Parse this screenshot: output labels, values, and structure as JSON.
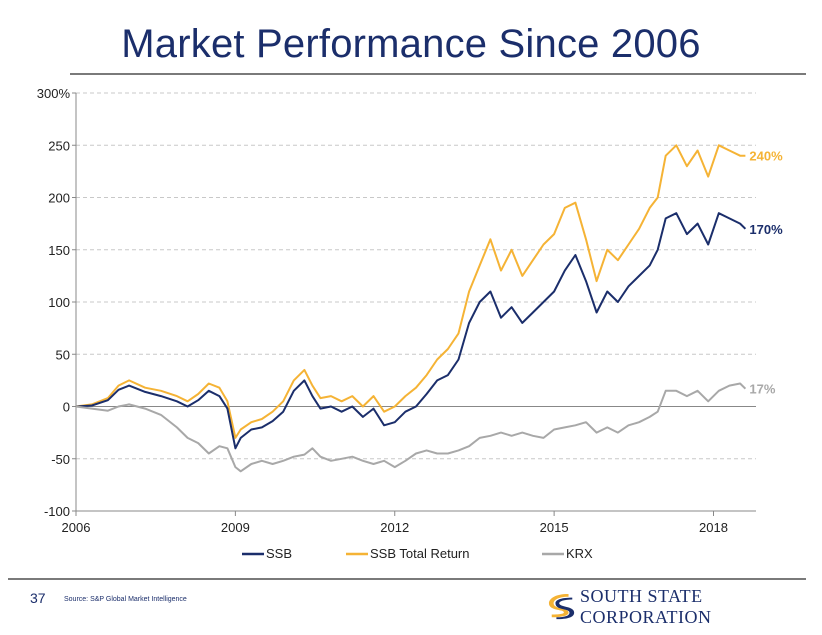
{
  "title": "Market Performance Since 2006",
  "page_number": "37",
  "source": "Source: S&P Global Market Intelligence",
  "logo_text": "SOUTH STATE CORPORATION",
  "colors": {
    "ssb": "#1b2e6b",
    "ssb_total_return": "#f5b335",
    "krx": "#a8a8a8",
    "brand": "#1b2e6b",
    "logo_accent": "#f5b335"
  },
  "chart_data": {
    "type": "line",
    "title": "",
    "xlabel": "",
    "ylabel": "",
    "ylim": [
      -100,
      300
    ],
    "xlim": [
      2006,
      2018.8
    ],
    "y_ticks": [
      -100,
      -50,
      0,
      50,
      100,
      150,
      200,
      250,
      300
    ],
    "y_tick_labels": [
      "-100",
      "-50",
      "0",
      "50",
      "100",
      "150",
      "200",
      "250",
      "300%"
    ],
    "x_ticks": [
      2006,
      2009,
      2012,
      2015,
      2018
    ],
    "x_tick_labels": [
      "2006",
      "2009",
      "2012",
      "2015",
      "2018"
    ],
    "grid": true,
    "legend": "bottom",
    "series": [
      {
        "name": "SSB Total Return",
        "color": "#f5b335",
        "end_label": "240%",
        "x": [
          2006.0,
          2006.3,
          2006.6,
          2006.8,
          2007.0,
          2007.3,
          2007.6,
          2007.9,
          2008.1,
          2008.3,
          2008.5,
          2008.7,
          2008.85,
          2009.0,
          2009.1,
          2009.3,
          2009.5,
          2009.7,
          2009.9,
          2010.1,
          2010.3,
          2010.45,
          2010.6,
          2010.8,
          2011.0,
          2011.2,
          2011.4,
          2011.6,
          2011.8,
          2012.0,
          2012.2,
          2012.4,
          2012.6,
          2012.8,
          2013.0,
          2013.2,
          2013.4,
          2013.6,
          2013.8,
          2014.0,
          2014.2,
          2014.4,
          2014.6,
          2014.8,
          2015.0,
          2015.2,
          2015.4,
          2015.6,
          2015.8,
          2016.0,
          2016.2,
          2016.4,
          2016.6,
          2016.8,
          2016.95,
          2017.1,
          2017.3,
          2017.5,
          2017.7,
          2017.9,
          2018.1,
          2018.3,
          2018.5,
          2018.6
        ],
        "values": [
          0,
          2,
          8,
          20,
          25,
          18,
          15,
          10,
          5,
          12,
          22,
          18,
          5,
          -30,
          -22,
          -15,
          -12,
          -5,
          5,
          25,
          35,
          20,
          8,
          10,
          5,
          10,
          0,
          10,
          -5,
          0,
          10,
          18,
          30,
          45,
          55,
          70,
          110,
          135,
          160,
          130,
          150,
          125,
          140,
          155,
          165,
          190,
          195,
          160,
          120,
          150,
          140,
          155,
          170,
          190,
          200,
          240,
          250,
          230,
          245,
          220,
          250,
          245,
          240,
          240
        ]
      },
      {
        "name": "SSB",
        "color": "#1b2e6b",
        "end_label": "170%",
        "x": [
          2006.0,
          2006.3,
          2006.6,
          2006.8,
          2007.0,
          2007.3,
          2007.6,
          2007.9,
          2008.1,
          2008.3,
          2008.5,
          2008.7,
          2008.85,
          2009.0,
          2009.1,
          2009.3,
          2009.5,
          2009.7,
          2009.9,
          2010.1,
          2010.3,
          2010.45,
          2010.6,
          2010.8,
          2011.0,
          2011.2,
          2011.4,
          2011.6,
          2011.8,
          2012.0,
          2012.2,
          2012.4,
          2012.6,
          2012.8,
          2013.0,
          2013.2,
          2013.4,
          2013.6,
          2013.8,
          2014.0,
          2014.2,
          2014.4,
          2014.6,
          2014.8,
          2015.0,
          2015.2,
          2015.4,
          2015.6,
          2015.8,
          2016.0,
          2016.2,
          2016.4,
          2016.6,
          2016.8,
          2016.95,
          2017.1,
          2017.3,
          2017.5,
          2017.7,
          2017.9,
          2018.1,
          2018.3,
          2018.5,
          2018.6
        ],
        "values": [
          0,
          1,
          6,
          16,
          20,
          14,
          10,
          5,
          0,
          6,
          15,
          10,
          -2,
          -40,
          -30,
          -22,
          -20,
          -14,
          -5,
          15,
          25,
          10,
          -2,
          0,
          -5,
          0,
          -10,
          -2,
          -18,
          -15,
          -5,
          0,
          12,
          25,
          30,
          45,
          80,
          100,
          110,
          85,
          95,
          80,
          90,
          100,
          110,
          130,
          145,
          120,
          90,
          110,
          100,
          115,
          125,
          135,
          150,
          180,
          185,
          165,
          175,
          155,
          185,
          180,
          175,
          170
        ]
      },
      {
        "name": "KRX",
        "color": "#a8a8a8",
        "end_label": "17%",
        "x": [
          2006.0,
          2006.3,
          2006.6,
          2006.8,
          2007.0,
          2007.3,
          2007.6,
          2007.9,
          2008.1,
          2008.3,
          2008.5,
          2008.7,
          2008.85,
          2009.0,
          2009.1,
          2009.3,
          2009.5,
          2009.7,
          2009.9,
          2010.1,
          2010.3,
          2010.45,
          2010.6,
          2010.8,
          2011.0,
          2011.2,
          2011.4,
          2011.6,
          2011.8,
          2012.0,
          2012.2,
          2012.4,
          2012.6,
          2012.8,
          2013.0,
          2013.2,
          2013.4,
          2013.6,
          2013.8,
          2014.0,
          2014.2,
          2014.4,
          2014.6,
          2014.8,
          2015.0,
          2015.2,
          2015.4,
          2015.6,
          2015.8,
          2016.0,
          2016.2,
          2016.4,
          2016.6,
          2016.8,
          2016.95,
          2017.1,
          2017.3,
          2017.5,
          2017.7,
          2017.9,
          2018.1,
          2018.3,
          2018.5,
          2018.6
        ],
        "values": [
          0,
          -2,
          -4,
          0,
          2,
          -2,
          -8,
          -20,
          -30,
          -35,
          -45,
          -38,
          -40,
          -58,
          -62,
          -55,
          -52,
          -55,
          -52,
          -48,
          -46,
          -40,
          -48,
          -52,
          -50,
          -48,
          -52,
          -55,
          -52,
          -58,
          -52,
          -45,
          -42,
          -45,
          -45,
          -42,
          -38,
          -30,
          -28,
          -25,
          -28,
          -25,
          -28,
          -30,
          -22,
          -20,
          -18,
          -15,
          -25,
          -20,
          -25,
          -18,
          -15,
          -10,
          -5,
          15,
          15,
          10,
          15,
          5,
          15,
          20,
          22,
          17
        ]
      }
    ]
  }
}
